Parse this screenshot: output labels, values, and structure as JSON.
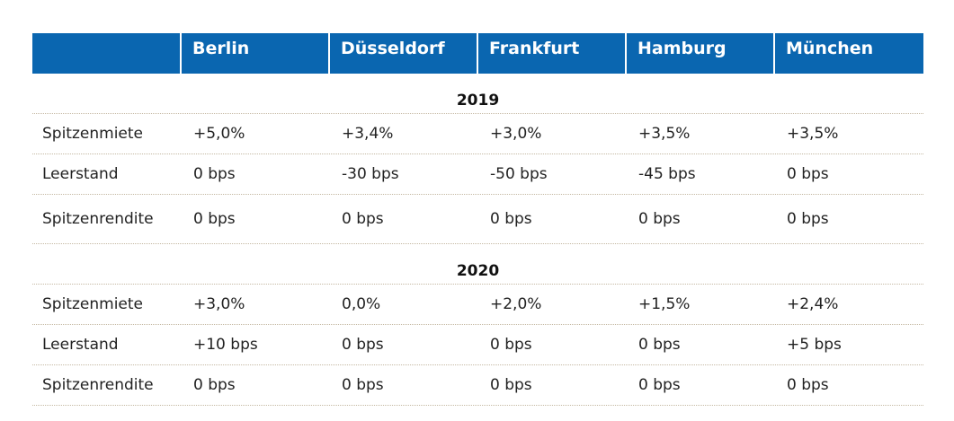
{
  "table": {
    "headers": [
      "",
      "Berlin",
      "Düsseldorf",
      "Frankfurt",
      "Hamburg",
      "München"
    ],
    "header_color": "#0a66b0",
    "sections": [
      {
        "year": "2019",
        "rows": [
          {
            "label": "Spitzenmiete",
            "values": [
              "+5,0%",
              "+3,4%",
              "+3,0%",
              "+3,5%",
              "+3,5%"
            ]
          },
          {
            "label": "Leerstand",
            "values": [
              "0 bps",
              "-30 bps",
              "-50 bps",
              "-45 bps",
              "0 bps"
            ]
          },
          {
            "label": "Spitzenrendite",
            "values": [
              "0 bps",
              "0 bps",
              "0 bps",
              "0 bps",
              "0 bps"
            ]
          }
        ]
      },
      {
        "year": "2020",
        "rows": [
          {
            "label": "Spitzenmiete",
            "values": [
              "+3,0%",
              "0,0%",
              "+2,0%",
              "+1,5%",
              "+2,4%"
            ]
          },
          {
            "label": "Leerstand",
            "values": [
              "+10 bps",
              "0 bps",
              "0 bps",
              "0 bps",
              "+5 bps"
            ]
          },
          {
            "label": "Spitzenrendite",
            "values": [
              "0 bps",
              "0 bps",
              "0 bps",
              "0 bps",
              "0 bps"
            ]
          }
        ]
      }
    ]
  }
}
